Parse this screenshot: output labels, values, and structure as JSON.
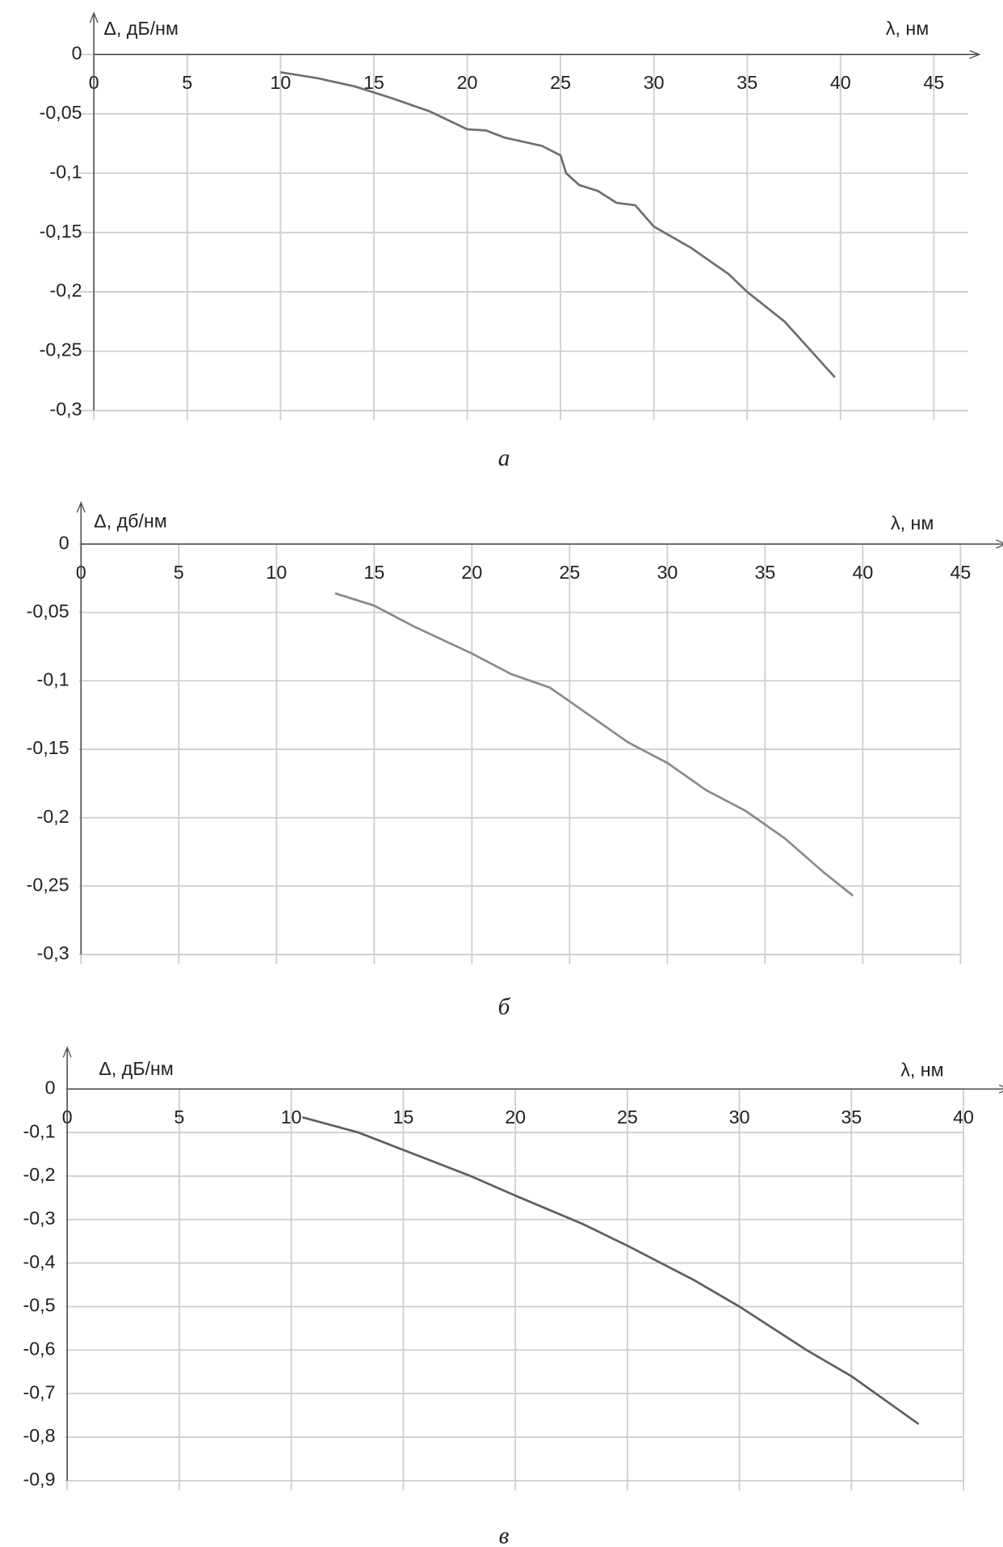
{
  "chart_data": [
    {
      "type": "line",
      "y_label": "Δ, дБ/нм",
      "x_label": "λ, нм",
      "caption": "а",
      "color": "#6e6e6e",
      "grid": true,
      "xlim": [
        0,
        45
      ],
      "xticks": [
        0,
        5,
        10,
        15,
        20,
        25,
        30,
        35,
        40,
        45
      ],
      "ylim": [
        -0.3,
        0
      ],
      "yticks": [
        0,
        {
          "value": -0.05,
          "label": "-0,05"
        },
        {
          "value": -0.1,
          "label": "-0,1"
        },
        {
          "value": -0.15,
          "label": "-0,15"
        },
        {
          "value": -0.2,
          "label": "-0,2"
        },
        {
          "value": -0.25,
          "label": "-0,25"
        },
        {
          "value": -0.3,
          "label": "-0,3"
        }
      ],
      "x": [
        10,
        12,
        14,
        16,
        18,
        20,
        21,
        22,
        24,
        25,
        25.3,
        26,
        27,
        28,
        29,
        30,
        32,
        34,
        35,
        37,
        39.7
      ],
      "values": [
        -0.015,
        -0.02,
        -0.027,
        -0.037,
        -0.048,
        -0.063,
        -0.064,
        -0.07,
        -0.077,
        -0.085,
        -0.1,
        -0.11,
        -0.115,
        -0.125,
        -0.127,
        -0.145,
        -0.163,
        -0.185,
        -0.2,
        -0.225,
        -0.272
      ]
    },
    {
      "type": "line",
      "y_label": "Δ, дб/нм",
      "x_label": "λ, нм",
      "caption": "б",
      "color": "#8a8a8a",
      "grid": true,
      "xlim": [
        0,
        45
      ],
      "xticks": [
        0,
        5,
        10,
        15,
        20,
        25,
        30,
        35,
        40,
        45
      ],
      "ylim": [
        -0.3,
        0
      ],
      "yticks": [
        0,
        {
          "value": -0.05,
          "label": "-0,05"
        },
        {
          "value": -0.1,
          "label": "-0,1"
        },
        {
          "value": -0.15,
          "label": "-0,15"
        },
        {
          "value": -0.2,
          "label": "-0,2"
        },
        {
          "value": -0.25,
          "label": "-0,25"
        },
        {
          "value": -0.3,
          "label": "-0,3"
        }
      ],
      "x": [
        13,
        15,
        17,
        20,
        22,
        24,
        26,
        28,
        30,
        32,
        34,
        36,
        38,
        39.5
      ],
      "values": [
        -0.036,
        -0.045,
        -0.06,
        -0.08,
        -0.095,
        -0.105,
        -0.125,
        -0.145,
        -0.16,
        -0.18,
        -0.195,
        -0.215,
        -0.24,
        -0.257
      ]
    },
    {
      "type": "line",
      "y_label": "Δ, дБ/нм",
      "x_label": "λ, нм",
      "caption": "в",
      "color": "#5e5e5e",
      "grid": true,
      "xlim": [
        0,
        40
      ],
      "xticks": [
        0,
        5,
        10,
        15,
        20,
        25,
        30,
        35,
        40
      ],
      "ylim": [
        -0.9,
        0
      ],
      "yticks": [
        0,
        {
          "value": -0.1,
          "label": "-0,1"
        },
        {
          "value": -0.2,
          "label": "-0,2"
        },
        {
          "value": -0.3,
          "label": "-0,3"
        },
        {
          "value": -0.4,
          "label": "-0,4"
        },
        {
          "value": -0.5,
          "label": "-0,5"
        },
        {
          "value": -0.6,
          "label": "-0,6"
        },
        {
          "value": -0.7,
          "label": "-0,7"
        },
        {
          "value": -0.8,
          "label": "-0,8"
        },
        {
          "value": -0.9,
          "label": "-0,9"
        }
      ],
      "x": [
        10.5,
        13,
        15,
        18,
        20,
        23,
        25,
        28,
        30,
        33,
        35,
        38
      ],
      "values": [
        -0.065,
        -0.1,
        -0.14,
        -0.2,
        -0.245,
        -0.31,
        -0.36,
        -0.44,
        -0.5,
        -0.6,
        -0.66,
        -0.77
      ]
    }
  ]
}
